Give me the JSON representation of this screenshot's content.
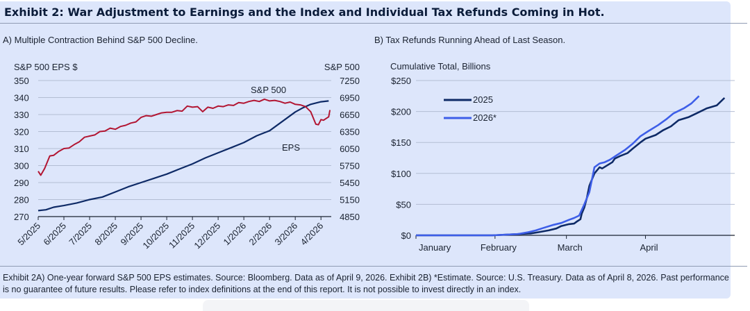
{
  "exhibit": {
    "title": "Exhibit 2: War Adjustment to Earnings and the Index and Individual Tax Refunds Coming in Hot.",
    "footnote": "Exhibit 2A) One-year forward S&P 500 EPS estimates. Source: Bloomberg. Data as of April 9, 2026. Exhibit 2B) *Estimate. Source: U.S. Treasury. Data as of April 8, 2026. Past performance is no guarantee of future results. Please refer to index definitions at the end of this report. It is not possible to invest directly in an index."
  },
  "colors": {
    "eps": "#0e2a66",
    "spx": "#b21532",
    "y2025": "#0e2a66",
    "y2026": "#3d5ee8",
    "grid": "#b3bdd3"
  },
  "chart_data": [
    {
      "type": "line",
      "title": "A) Multiple Contraction Behind S&P 500 Decline.",
      "ylabel_left": "S&P 500 EPS $",
      "ylabel_right": "S&P 500",
      "ylim_left": [
        270,
        350
      ],
      "ylim_right": [
        4850,
        7250
      ],
      "yticks_left": [
        270,
        280,
        290,
        300,
        310,
        320,
        330,
        340,
        350
      ],
      "yticks_right": [
        4850,
        5150,
        5450,
        5750,
        6050,
        6350,
        6650,
        6950,
        7250
      ],
      "x_ticks": [
        "5/2025",
        "6/2025",
        "7/2025",
        "8/2025",
        "9/2025",
        "10/2025",
        "11/2025",
        "12/2025",
        "1/2026",
        "2/2026",
        "3/2026",
        "4/2026"
      ],
      "series": [
        {
          "name": "EPS",
          "axis": "left",
          "x": [
            0,
            0.3,
            0.6,
            1,
            1.5,
            2,
            2.5,
            3,
            3.5,
            4,
            4.5,
            5,
            5.5,
            6,
            6.5,
            7,
            7.5,
            8,
            8.5,
            9,
            9.5,
            10,
            10.3,
            10.6,
            11,
            11.3
          ],
          "values": [
            273.5,
            274,
            275.5,
            276.5,
            278,
            280,
            281.5,
            284.5,
            287.5,
            290,
            292.5,
            295,
            298,
            301,
            304.5,
            307.5,
            310.5,
            313.5,
            317.5,
            320.5,
            326,
            331.5,
            334,
            336,
            337.5,
            338
          ]
        },
        {
          "name": "S&P 500",
          "axis": "right",
          "x": [
            0,
            0.1,
            0.25,
            0.45,
            0.6,
            0.8,
            1.0,
            1.2,
            1.4,
            1.6,
            1.8,
            2.0,
            2.2,
            2.4,
            2.6,
            2.8,
            3.0,
            3.2,
            3.4,
            3.6,
            3.8,
            4.0,
            4.2,
            4.4,
            4.6,
            4.8,
            5.0,
            5.2,
            5.4,
            5.6,
            5.8,
            6.0,
            6.2,
            6.4,
            6.6,
            6.8,
            7.0,
            7.2,
            7.4,
            7.6,
            7.8,
            8.0,
            8.2,
            8.4,
            8.6,
            8.8,
            9.0,
            9.2,
            9.4,
            9.6,
            9.8,
            10.0,
            10.2,
            10.4,
            10.6,
            10.8,
            10.9,
            11.0,
            11.1,
            11.2,
            11.3,
            11.35
          ],
          "values": [
            5650,
            5580,
            5700,
            5920,
            5930,
            6000,
            6050,
            6060,
            6120,
            6170,
            6250,
            6270,
            6290,
            6350,
            6360,
            6410,
            6390,
            6440,
            6460,
            6500,
            6520,
            6600,
            6630,
            6620,
            6650,
            6680,
            6690,
            6690,
            6720,
            6710,
            6800,
            6780,
            6790,
            6700,
            6780,
            6760,
            6800,
            6790,
            6820,
            6810,
            6860,
            6850,
            6880,
            6900,
            6880,
            6920,
            6890,
            6900,
            6880,
            6850,
            6870,
            6830,
            6820,
            6790,
            6700,
            6480,
            6470,
            6560,
            6550,
            6580,
            6610,
            6730
          ]
        }
      ],
      "annotations": [
        "S&P 500",
        "EPS"
      ]
    },
    {
      "type": "line",
      "title": "B) Tax Refunds Running Ahead of Last Season.",
      "ylabel": "Cumulative Total, Billions",
      "ylim": [
        0,
        250
      ],
      "yticks": [
        "$0",
        "$50",
        "$100",
        "$150",
        "$200",
        "$250"
      ],
      "x_ticks": [
        "January",
        "February",
        "March",
        "April"
      ],
      "series": [
        {
          "name": "2025",
          "x": [
            0,
            30,
            45,
            48,
            52,
            55,
            57,
            60,
            62,
            63,
            64.5,
            65,
            66,
            67,
            68,
            70,
            72,
            73,
            77,
            78,
            80,
            83,
            85,
            88,
            90,
            94,
            97,
            100,
            103,
            107,
            110,
            114,
            118,
            121
          ],
          "values": [
            0,
            0,
            3,
            5,
            8,
            11,
            15,
            18,
            19,
            22,
            26,
            35,
            45,
            60,
            80,
            100,
            110,
            108,
            118,
            124,
            128,
            133,
            140,
            150,
            156,
            162,
            170,
            176,
            186,
            191,
            197,
            205,
            210,
            222
          ]
        },
        {
          "name": "2026*",
          "x": [
            0,
            30,
            40,
            44,
            47,
            50,
            54,
            57,
            60,
            62,
            64,
            66,
            68,
            70,
            72,
            74,
            76,
            79,
            82,
            85,
            88,
            91,
            95,
            98,
            101,
            105,
            108,
            111
          ],
          "values": [
            0,
            0,
            2,
            5,
            8,
            12,
            17,
            20,
            25,
            28,
            32,
            50,
            70,
            110,
            116,
            118,
            122,
            130,
            138,
            148,
            160,
            168,
            178,
            187,
            197,
            205,
            213,
            225
          ]
        }
      ],
      "legend": [
        "2025",
        "2026*"
      ],
      "legend_position": "top-left"
    }
  ]
}
